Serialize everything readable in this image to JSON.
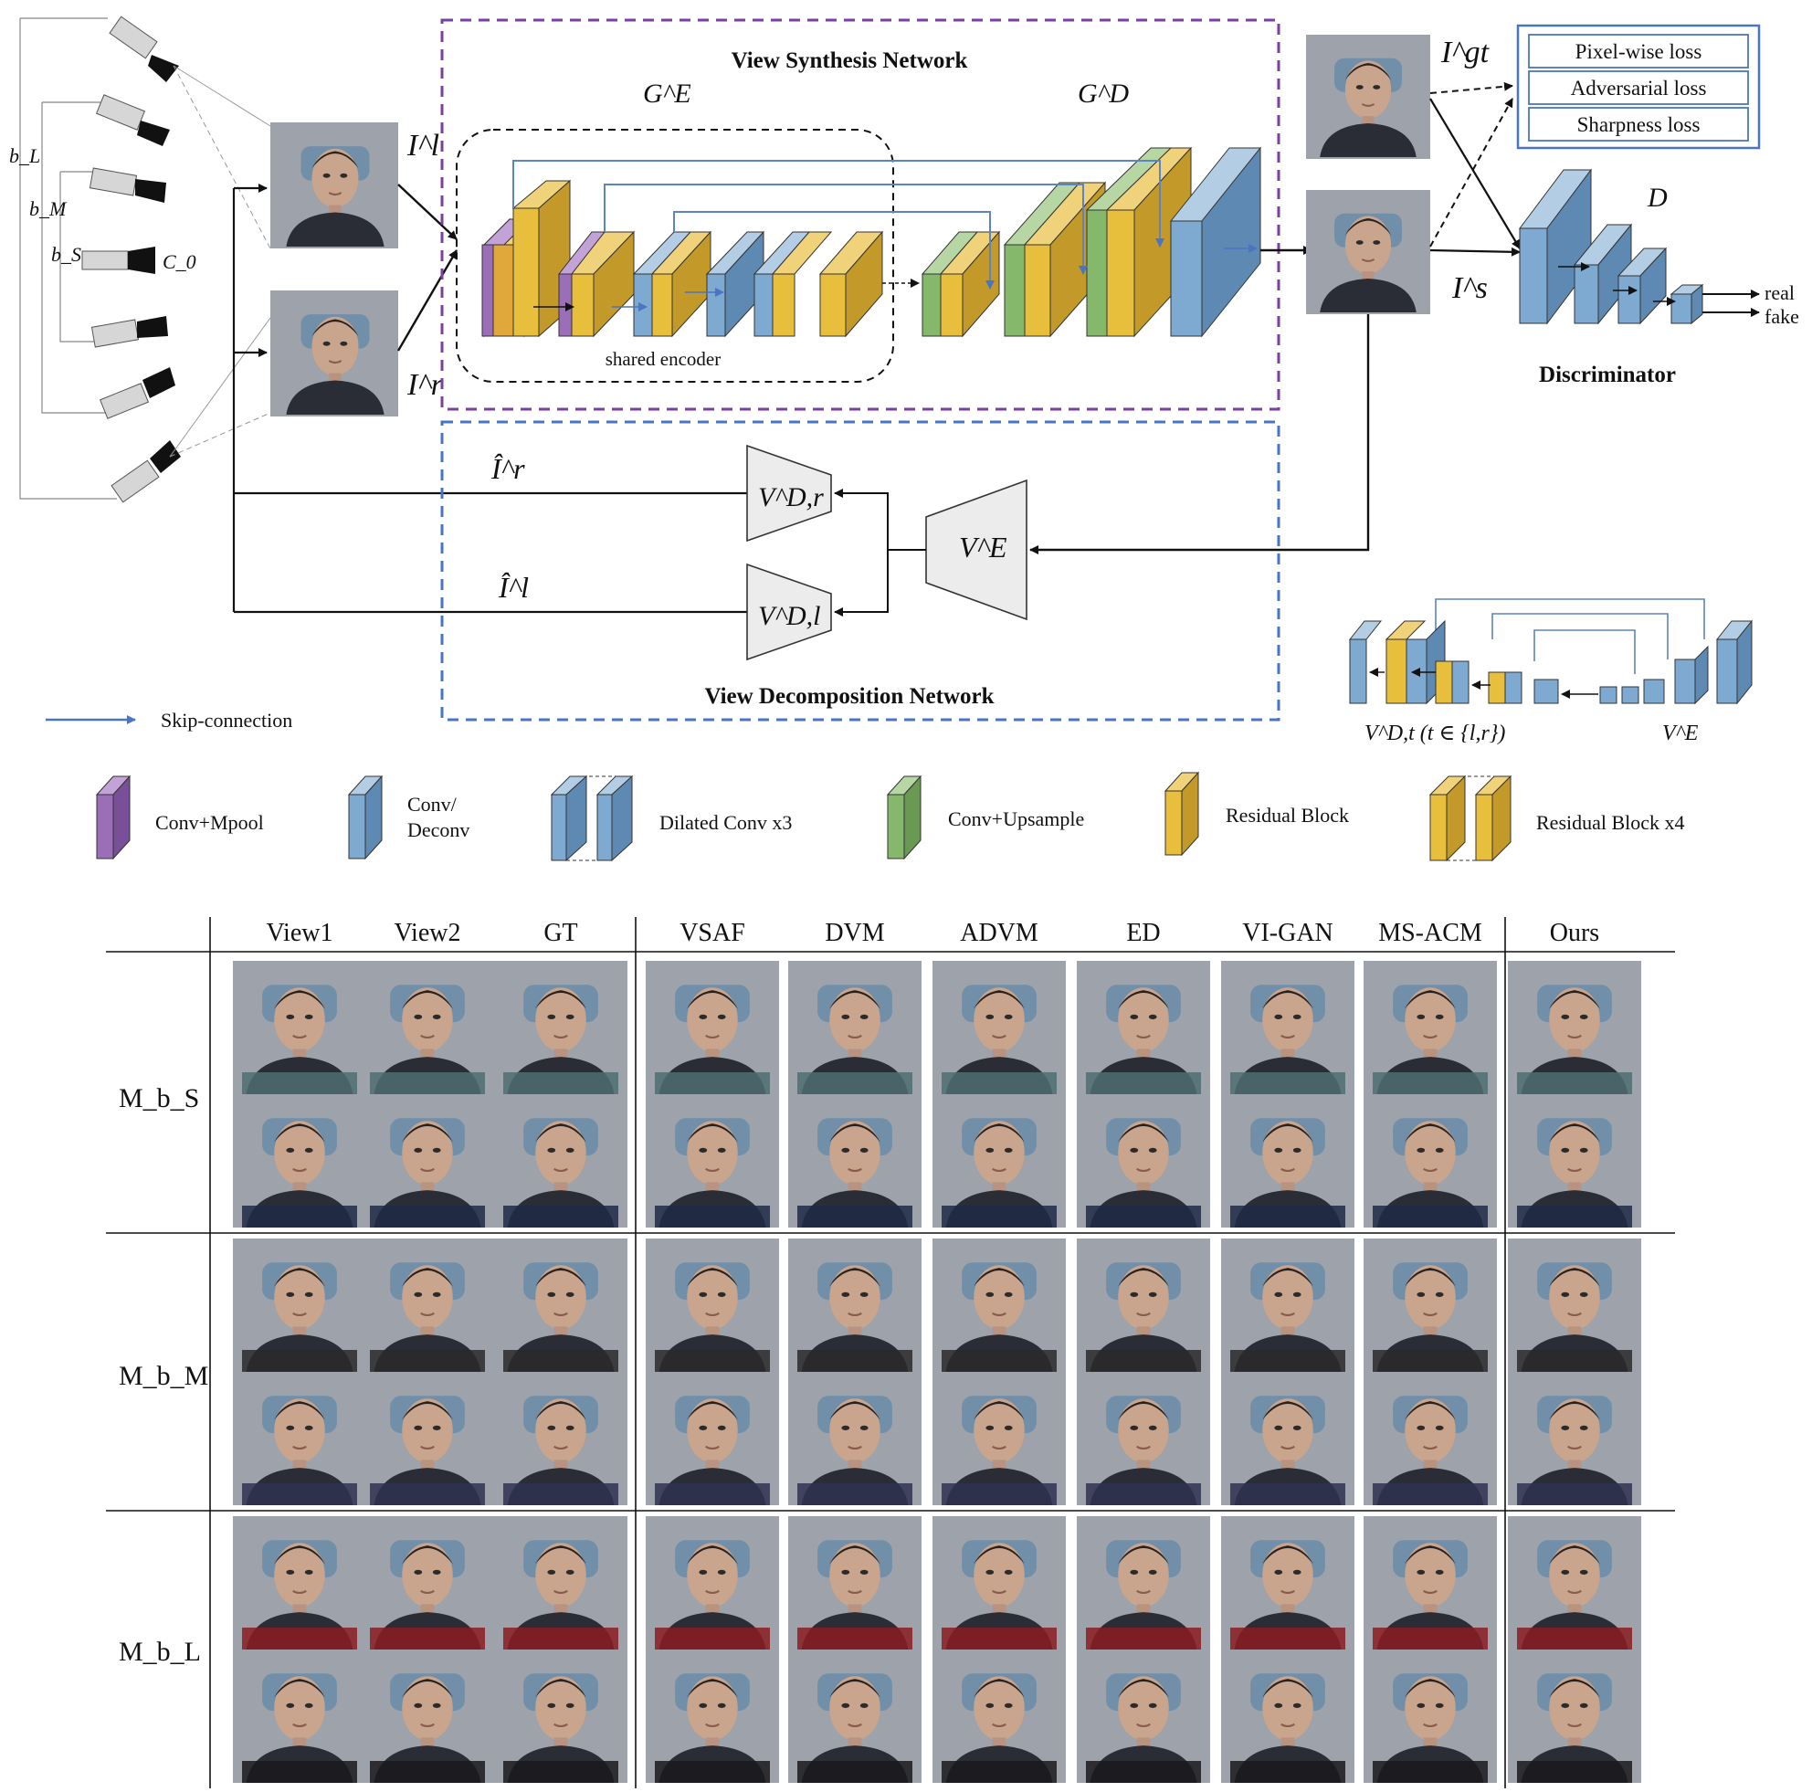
{
  "top": {
    "rig": {
      "b_L": "b_L",
      "b_M": "b_M",
      "b_S": "b_S",
      "C_0": "C_0"
    },
    "inputs": {
      "left": "I^l",
      "right": "I^r"
    },
    "synthesis": {
      "title": "View Synthesis Network",
      "encoder": "G^E",
      "decoder": "G^D",
      "shared_encoder": "shared encoder"
    },
    "outputs": {
      "gt": "I^gt",
      "synth": "I^s"
    },
    "losses": [
      "Pixel-wise loss",
      "Adversarial loss",
      "Sharpness loss"
    ],
    "discriminator": {
      "symbol": "D",
      "title": "Discriminator",
      "real": "real",
      "fake": "fake"
    },
    "decomposition": {
      "title": "View Decomposition Network",
      "encoder": "V^E",
      "dec_r": "V^D,r",
      "dec_l": "V^D,l",
      "recon_r": "Î^r",
      "recon_l": "Î^l"
    },
    "skip_legend": "Skip-connection",
    "mini": {
      "decoder_label": "V^D,t (t ∈ {l,r})",
      "encoder_label": "V^E"
    }
  },
  "legend": [
    {
      "label": "Conv+Mpool",
      "color": "#9b6fb8"
    },
    {
      "label": "Conv/ Deconv",
      "color": "#7ea9d1"
    },
    {
      "label": "Dilated Conv x3",
      "color": "#7ea9d1"
    },
    {
      "label": "Conv+Upsample",
      "color": "#86b86b"
    },
    {
      "label": "Residual Block",
      "color": "#e8bf3c"
    },
    {
      "label": "Residual Block x4",
      "color": "#e8bf3c"
    }
  ],
  "grid": {
    "columns": [
      "View1",
      "View2",
      "GT",
      "VSAF",
      "DVM",
      "ADVM",
      "ED",
      "VI-GAN",
      "MS-ACM",
      "Ours"
    ],
    "rows": [
      "M_b_S",
      "M_b_M",
      "M_b_L"
    ]
  },
  "colors": {
    "purple_box": "#7b3f9e",
    "blue_box": "#4a74c4",
    "skip_blue": "#5b84c4",
    "layer_blue": "#7ea9d1",
    "layer_yellow": "#e8bf3c",
    "layer_green": "#86b86b",
    "layer_purple": "#9b6fb8"
  }
}
